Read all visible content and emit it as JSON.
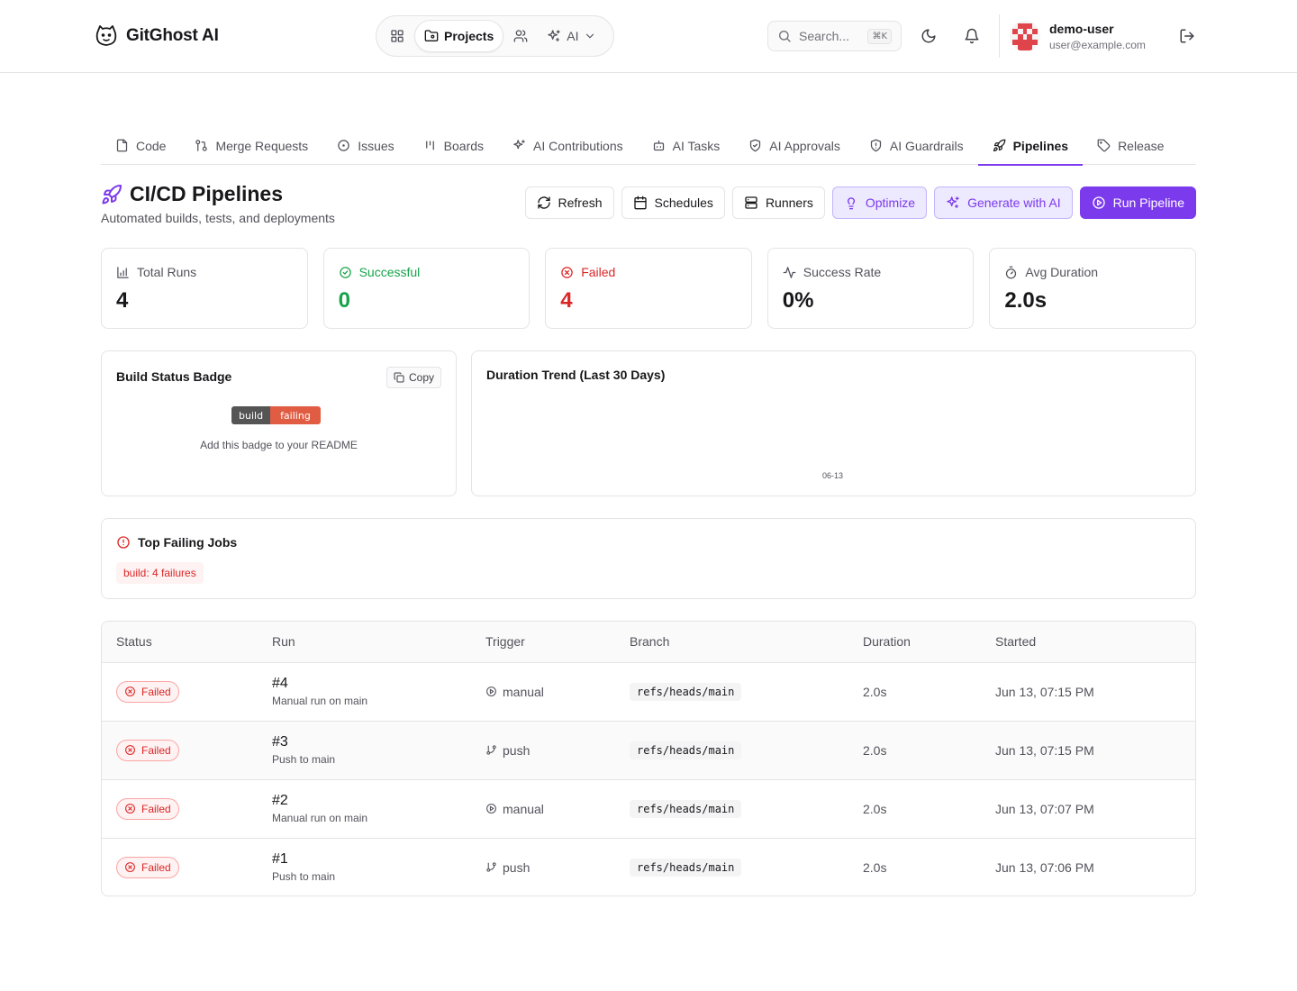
{
  "header": {
    "brand": "GitGhost AI",
    "nav": {
      "projects_label": "Projects",
      "ai_label": "AI"
    },
    "search": {
      "placeholder": "Search...",
      "shortcut": "⌘K"
    },
    "user": {
      "name": "demo-user",
      "email": "user@example.com"
    }
  },
  "tabs": [
    {
      "label": "Code",
      "icon": "file-icon"
    },
    {
      "label": "Merge Requests",
      "icon": "git-pull-request-icon"
    },
    {
      "label": "Issues",
      "icon": "circle-dot-icon"
    },
    {
      "label": "Boards",
      "icon": "kanban-icon"
    },
    {
      "label": "AI Contributions",
      "icon": "sparkles-icon"
    },
    {
      "label": "AI Tasks",
      "icon": "bot-icon"
    },
    {
      "label": "AI Approvals",
      "icon": "shield-check-icon"
    },
    {
      "label": "AI Guardrails",
      "icon": "shield-alert-icon"
    },
    {
      "label": "Pipelines",
      "icon": "rocket-icon"
    },
    {
      "label": "Release",
      "icon": "tag-icon"
    }
  ],
  "page": {
    "title": "CI/CD Pipelines",
    "subtitle": "Automated builds, tests, and deployments",
    "actions": {
      "refresh": "Refresh",
      "schedules": "Schedules",
      "runners": "Runners",
      "optimize": "Optimize",
      "generate": "Generate with AI",
      "run": "Run Pipeline"
    }
  },
  "stats": {
    "total_runs": {
      "label": "Total Runs",
      "value": "4"
    },
    "successful": {
      "label": "Successful",
      "value": "0"
    },
    "failed": {
      "label": "Failed",
      "value": "4"
    },
    "success_rate": {
      "label": "Success Rate",
      "value": "0%"
    },
    "avg_duration": {
      "label": "Avg Duration",
      "value": "2.0s"
    }
  },
  "badge_card": {
    "title": "Build Status Badge",
    "copy_label": "Copy",
    "badge_left": "build",
    "badge_right": "failing",
    "hint": "Add this badge to your README"
  },
  "trend_card": {
    "title": "Duration Trend (Last 30 Days)",
    "x_tick": "06-13"
  },
  "failing_jobs": {
    "title": "Top Failing Jobs",
    "items": [
      "build: 4 failures"
    ]
  },
  "table": {
    "columns": {
      "status": "Status",
      "run": "Run",
      "trigger": "Trigger",
      "branch": "Branch",
      "duration": "Duration",
      "started": "Started"
    },
    "rows": [
      {
        "status": "Failed",
        "run": "#4",
        "desc": "Manual run on main",
        "trigger": "manual",
        "branch": "refs/heads/main",
        "duration": "2.0s",
        "started": "Jun 13, 07:15 PM"
      },
      {
        "status": "Failed",
        "run": "#3",
        "desc": "Push to main",
        "trigger": "push",
        "branch": "refs/heads/main",
        "duration": "2.0s",
        "started": "Jun 13, 07:15 PM"
      },
      {
        "status": "Failed",
        "run": "#2",
        "desc": "Manual run on main",
        "trigger": "manual",
        "branch": "refs/heads/main",
        "duration": "2.0s",
        "started": "Jun 13, 07:07 PM"
      },
      {
        "status": "Failed",
        "run": "#1",
        "desc": "Push to main",
        "trigger": "push",
        "branch": "refs/heads/main",
        "duration": "2.0s",
        "started": "Jun 13, 07:06 PM"
      }
    ]
  },
  "colors": {
    "accent": "#7c3aed",
    "success": "#16a34a",
    "danger": "#dc2626",
    "badge_failing": "#e05d44"
  }
}
